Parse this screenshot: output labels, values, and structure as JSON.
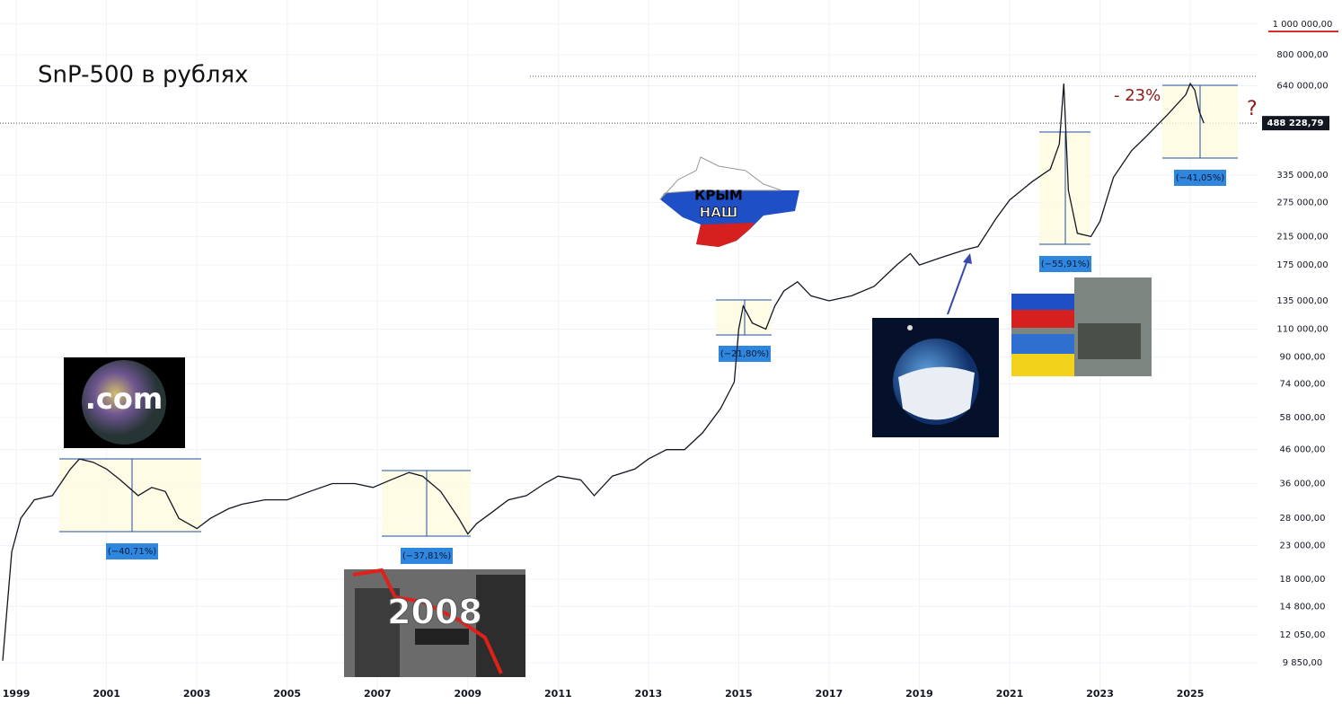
{
  "chart_data": {
    "type": "line",
    "title": "SnP-500 в рублях",
    "color": "#131722",
    "log_scale": true,
    "grid": true,
    "xlim": [
      1998.64,
      2026.49
    ],
    "xticks": [
      1999,
      2001,
      2003,
      2005,
      2007,
      2009,
      2011,
      2013,
      2015,
      2017,
      2019,
      2021,
      2023,
      2025
    ],
    "ylim": [
      8000,
      1190000
    ],
    "yticks": [
      {
        "value": 1000000,
        "label": "1 000 000,00"
      },
      {
        "value": 800000,
        "label": "800 000,00"
      },
      {
        "value": 640000,
        "label": "640 000,00"
      },
      {
        "value": 335000,
        "label": "335 000,00"
      },
      {
        "value": 275000,
        "label": "275 000,00"
      },
      {
        "value": 215000,
        "label": "215 000,00"
      },
      {
        "value": 175000,
        "label": "175 000,00"
      },
      {
        "value": 135000,
        "label": "135 000,00"
      },
      {
        "value": 110000,
        "label": "110 000,00"
      },
      {
        "value": 90000,
        "label": "90 000,00"
      },
      {
        "value": 74000,
        "label": "74 000,00"
      },
      {
        "value": 58000,
        "label": "58 000,00"
      },
      {
        "value": 46000,
        "label": "46 000,00"
      },
      {
        "value": 36000,
        "label": "36 000,00"
      },
      {
        "value": 28000,
        "label": "28 000,00"
      },
      {
        "value": 23000,
        "label": "23 000,00"
      },
      {
        "value": 18000,
        "label": "18 000,00"
      },
      {
        "value": 14800,
        "label": "14 800,00"
      },
      {
        "value": 12050,
        "label": "12 050,00"
      },
      {
        "value": 9850,
        "label": "9 850,00"
      }
    ],
    "last_price_label": "488 228,79",
    "x": [
      1998.7,
      1998.9,
      1999.1,
      1999.4,
      1999.8,
      2000.2,
      2000.4,
      2000.7,
      2001.0,
      2001.3,
      2001.7,
      2002.0,
      2002.3,
      2002.6,
      2002.8,
      2003.0,
      2003.3,
      2003.7,
      2004.0,
      2004.5,
      2005.0,
      2005.5,
      2006.0,
      2006.5,
      2006.9,
      2007.3,
      2007.7,
      2008.0,
      2008.4,
      2008.8,
      2009.0,
      2009.2,
      2009.5,
      2009.9,
      2010.3,
      2010.7,
      2011.0,
      2011.5,
      2011.8,
      2012.2,
      2012.7,
      2013.0,
      2013.4,
      2013.8,
      2014.2,
      2014.6,
      2014.9,
      2015.0,
      2015.1,
      2015.3,
      2015.6,
      2015.8,
      2016.0,
      2016.3,
      2016.6,
      2017.0,
      2017.5,
      2018.0,
      2018.5,
      2018.8,
      2019.0,
      2019.5,
      2020.0,
      2020.3,
      2020.7,
      2021.0,
      2021.5,
      2021.9,
      2022.1,
      2022.2,
      2022.3,
      2022.5,
      2022.8,
      2023.0,
      2023.3,
      2023.7,
      2024.0,
      2024.5,
      2024.9,
      2025.0,
      2025.1,
      2025.2,
      2025.3
    ],
    "values": [
      10000,
      22000,
      28000,
      32000,
      33000,
      40000,
      43000,
      42000,
      40000,
      37000,
      33000,
      35000,
      34000,
      28000,
      27000,
      26000,
      28000,
      30000,
      31000,
      32000,
      32000,
      34000,
      36000,
      36000,
      35000,
      37000,
      39000,
      38000,
      34000,
      28000,
      25000,
      27000,
      29000,
      32000,
      33000,
      36000,
      38000,
      37000,
      33000,
      38000,
      40000,
      43000,
      46000,
      46000,
      52000,
      62000,
      75000,
      110000,
      130000,
      115000,
      110000,
      130000,
      145000,
      155000,
      140000,
      135000,
      140000,
      150000,
      175000,
      190000,
      175000,
      185000,
      195000,
      200000,
      245000,
      280000,
      320000,
      350000,
      420000,
      650000,
      300000,
      220000,
      215000,
      240000,
      330000,
      400000,
      440000,
      520000,
      600000,
      650000,
      620000,
      530000,
      488228.79
    ],
    "drawdown_labels": [
      "(−40,71%)",
      "(−37,81%)",
      "(−21,80%)",
      "(−55,91%)",
      "(−41,05%)"
    ],
    "annotations": {
      "dotcom": ".com",
      "crisis": "2008",
      "crimea_1": "КРЫМ",
      "crimea_2": "НАШ",
      "drop": "- 23%",
      "question": "?"
    }
  }
}
